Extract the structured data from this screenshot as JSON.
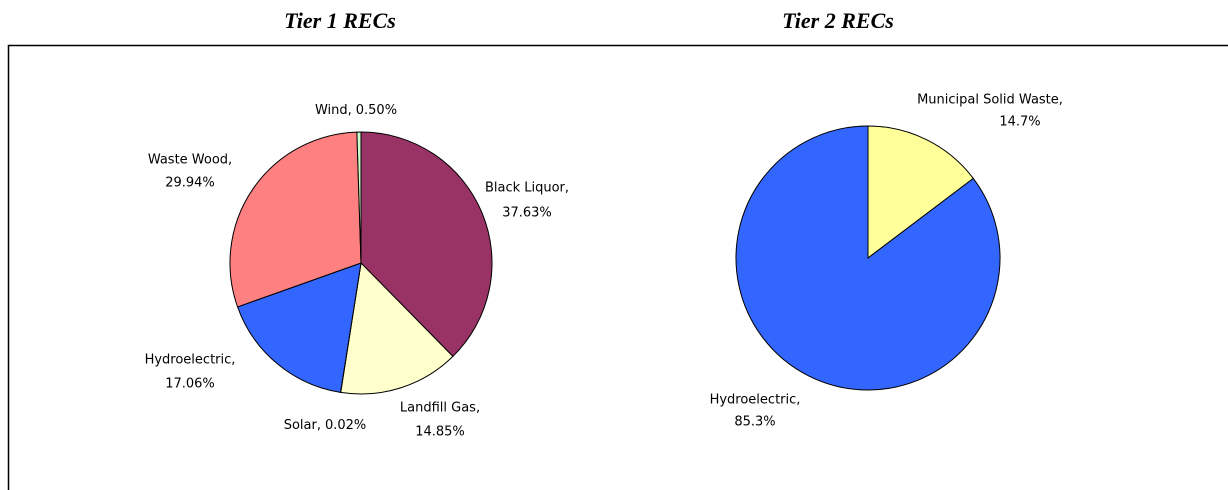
{
  "chart_data": [
    {
      "type": "pie",
      "title": "Tier 1 RECs",
      "categories": [
        "Black Liquor,",
        "Landfill Gas,",
        "Solar,",
        "Hydroelectric,",
        "Waste Wood,",
        "Wind,"
      ],
      "values": [
        37.63,
        14.85,
        0.02,
        17.06,
        29.94,
        0.5
      ],
      "value_labels": [
        "37.63%",
        "14.85%",
        "0.02%",
        "17.06%",
        "29.94%",
        "0.50%"
      ],
      "colors": [
        "#993366",
        "#ffffcc",
        "#ccffff",
        "#3366ff",
        "#ff8080",
        "#ccffcc"
      ]
    },
    {
      "type": "pie",
      "title": "Tier 2 RECs",
      "categories": [
        "Municipal Solid Waste,",
        "Hydroelectric,"
      ],
      "values": [
        14.7,
        85.3
      ],
      "value_labels": [
        "14.7%",
        "85.3%"
      ],
      "colors": [
        "#ffff99",
        "#3366ff"
      ]
    }
  ]
}
